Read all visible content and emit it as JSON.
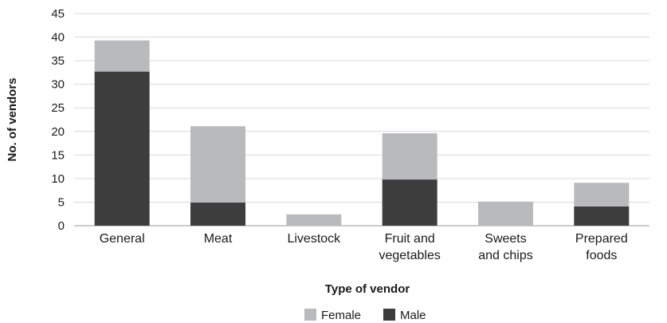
{
  "chart_data": {
    "type": "bar",
    "stacked": true,
    "categories": [
      [
        "General"
      ],
      [
        "Meat"
      ],
      [
        "Livestock"
      ],
      [
        "Fruit and",
        "vegetables"
      ],
      [
        "Sweets",
        "and chips"
      ],
      [
        "Prepared",
        "foods"
      ]
    ],
    "series": [
      {
        "name": "Male",
        "values": [
          32.7,
          4.9,
          0,
          9.8,
          0,
          4.1
        ],
        "color": "#3d3d3d"
      },
      {
        "name": "Female",
        "values": [
          6.6,
          16.2,
          2.4,
          9.8,
          5.1,
          5.0
        ],
        "color": "#b9babc"
      }
    ],
    "xlabel": "Type of vendor",
    "ylabel": "No. of vendors",
    "ylim": [
      0,
      45
    ],
    "yticks": [
      0,
      5,
      10,
      15,
      20,
      25,
      30,
      35,
      40,
      45
    ],
    "grid": true,
    "legend": {
      "position": "bottom",
      "order": [
        "Female",
        "Male"
      ]
    }
  }
}
